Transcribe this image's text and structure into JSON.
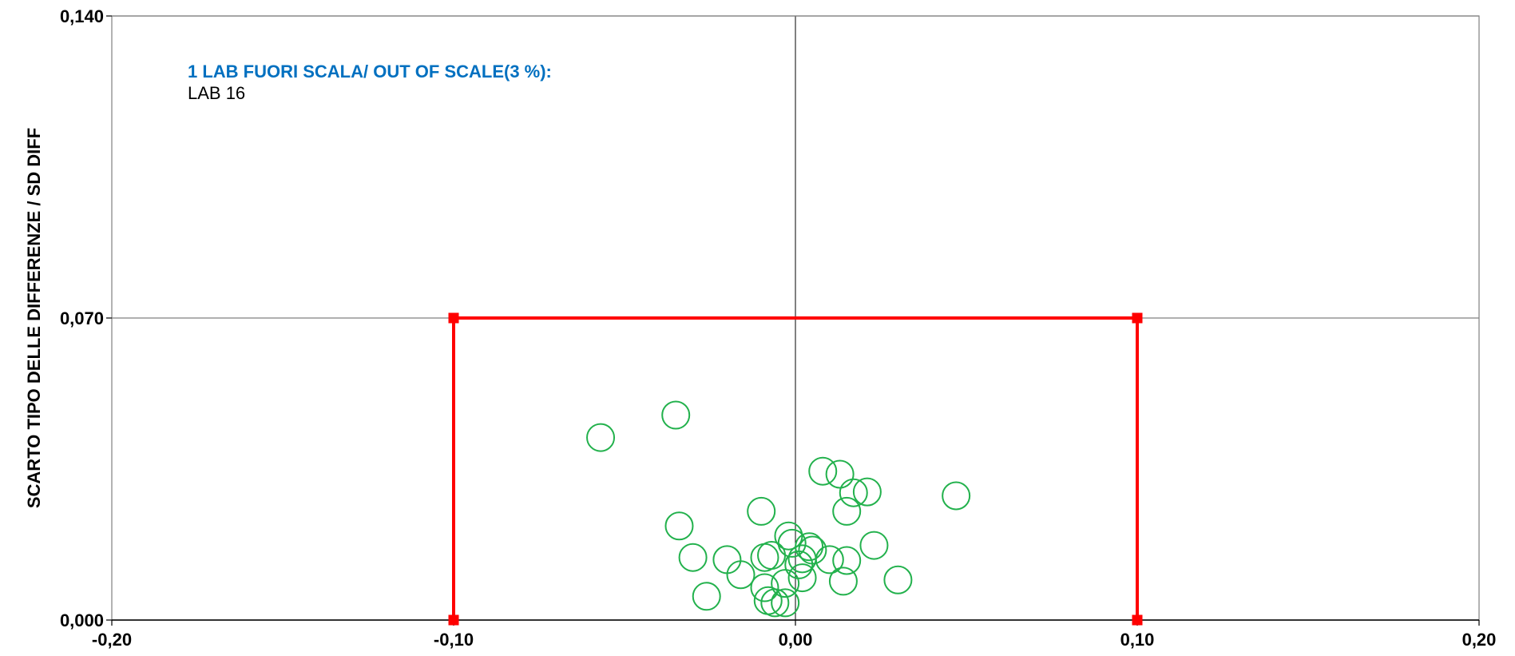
{
  "chart_data": {
    "type": "scatter",
    "title": "",
    "xlabel": "",
    "ylabel": "SCARTO TIPO DELLE DIFFERENZE / SD DIFF",
    "xlim": [
      -0.2,
      0.2
    ],
    "ylim": [
      0,
      0.14
    ],
    "x_ticks": [
      "-0,20",
      "-0,10",
      "0,00",
      "0,10",
      "0,20"
    ],
    "y_ticks": [
      "0,000",
      "0,070",
      "0,140"
    ],
    "grid": "major horizontal at 0,070 and 0,140; vertical at 0,00",
    "annotation": {
      "title": "1  LAB FUORI SCALA/ OUT OF SCALE(3 %):",
      "text": "LAB 16"
    },
    "limit_box": {
      "x": [
        -0.1,
        0.1
      ],
      "y": [
        0,
        0.07
      ],
      "color": "#ff0000"
    },
    "marker_color": "#22b14c",
    "annotation_color": "#0070c0",
    "points": [
      {
        "x": -0.057,
        "y": 0.0423
      },
      {
        "x": -0.035,
        "y": 0.0475
      },
      {
        "x": -0.034,
        "y": 0.0218
      },
      {
        "x": -0.03,
        "y": 0.0145
      },
      {
        "x": -0.026,
        "y": 0.0055
      },
      {
        "x": -0.02,
        "y": 0.014
      },
      {
        "x": -0.016,
        "y": 0.0105
      },
      {
        "x": -0.01,
        "y": 0.0252
      },
      {
        "x": -0.009,
        "y": 0.0075
      },
      {
        "x": -0.009,
        "y": 0.0145
      },
      {
        "x": -0.008,
        "y": 0.0045
      },
      {
        "x": -0.007,
        "y": 0.015
      },
      {
        "x": -0.006,
        "y": 0.004
      },
      {
        "x": -0.003,
        "y": 0.004
      },
      {
        "x": -0.003,
        "y": 0.0085
      },
      {
        "x": -0.002,
        "y": 0.0195
      },
      {
        "x": -0.001,
        "y": 0.0178
      },
      {
        "x": 0.001,
        "y": 0.0128
      },
      {
        "x": 0.002,
        "y": 0.0098
      },
      {
        "x": 0.002,
        "y": 0.0142
      },
      {
        "x": 0.004,
        "y": 0.017
      },
      {
        "x": 0.005,
        "y": 0.0162
      },
      {
        "x": 0.008,
        "y": 0.0345
      },
      {
        "x": 0.01,
        "y": 0.014
      },
      {
        "x": 0.013,
        "y": 0.0338
      },
      {
        "x": 0.014,
        "y": 0.009
      },
      {
        "x": 0.015,
        "y": 0.0252
      },
      {
        "x": 0.015,
        "y": 0.0138
      },
      {
        "x": 0.017,
        "y": 0.0295
      },
      {
        "x": 0.021,
        "y": 0.0297
      },
      {
        "x": 0.023,
        "y": 0.0173
      },
      {
        "x": 0.03,
        "y": 0.0093
      },
      {
        "x": 0.047,
        "y": 0.0288
      }
    ]
  }
}
